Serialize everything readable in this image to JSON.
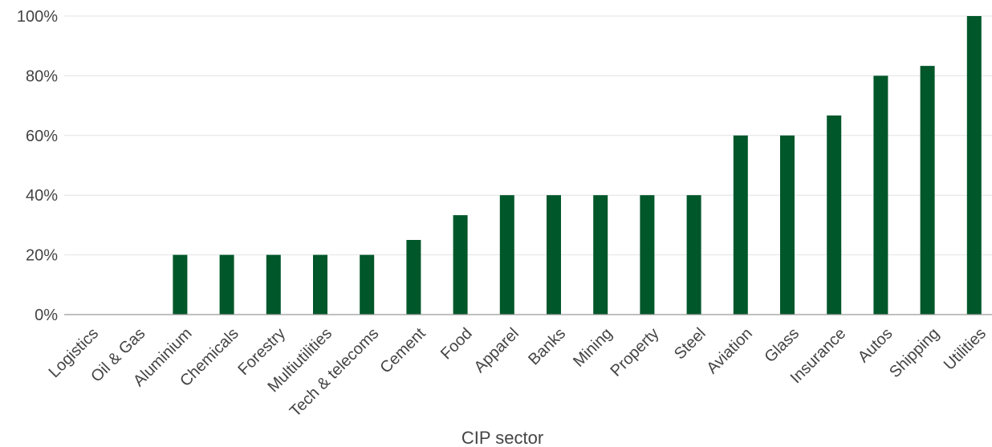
{
  "chart_data": {
    "type": "bar",
    "title": "",
    "xlabel": "CIP sector",
    "ylabel": "",
    "ylim": [
      0,
      100
    ],
    "yticks": [
      0,
      20,
      40,
      60,
      80,
      100
    ],
    "ytick_labels": [
      "0%",
      "20%",
      "40%",
      "60%",
      "80%",
      "100%"
    ],
    "grid": "horizontal",
    "legend": "none",
    "bar_color": "#00572a",
    "categories": [
      "Logistics",
      "Oil & Gas",
      "Aluminium",
      "Chemicals",
      "Forestry",
      "Multiutilities",
      "Tech & telecoms",
      "Cement",
      "Food",
      "Apparel",
      "Banks",
      "Mining",
      "Property",
      "Steel",
      "Aviation",
      "Glass",
      "Insurance",
      "Autos",
      "Shipping",
      "Utilities"
    ],
    "values": [
      0,
      0,
      20,
      20,
      20,
      20,
      20,
      25,
      33.3,
      40,
      40,
      40,
      40,
      40,
      60,
      60,
      66.7,
      80,
      83.3,
      100
    ]
  }
}
